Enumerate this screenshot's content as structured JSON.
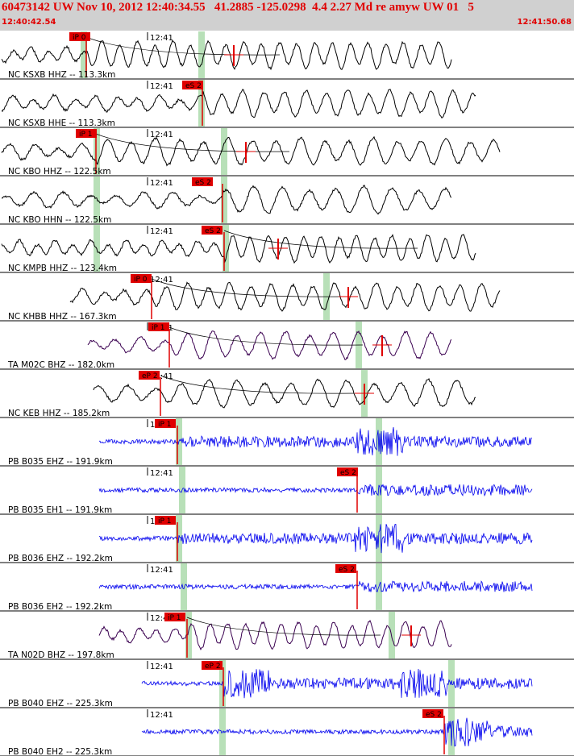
{
  "header": {
    "title": "60473142 UW Nov 10, 2012 12:40:34.55   41.2885 -125.0298  4.4 2.27 Md re amyw UW 01   5",
    "start_time": "12:40:42.54",
    "end_time": "12:41:50.68"
  },
  "colors": {
    "header_bg": "#d0d0d0",
    "header_text": "#e00000",
    "pick_box": "#e00000",
    "pick_text": "#000000",
    "window_bar": "#b8e0b8",
    "trace_black": "#000000",
    "trace_blue": "#0000ee",
    "trace_purple": "#3a0050"
  },
  "minute_label": "12:41",
  "traces": [
    {
      "label": "NC KSXB HHZ -- 113.3km",
      "pick": "iP 0",
      "color": "black",
      "start": 0.0
    },
    {
      "label": "NC KSXB HHE -- 113.3km",
      "pick": "eS 2",
      "color": "black",
      "start": 0.0
    },
    {
      "label": "NC KBO HHZ -- 122.5km",
      "pick": "iP 1",
      "color": "black",
      "start": 0.0
    },
    {
      "label": "NC KBO HHN -- 122.5km",
      "pick": "eS 2",
      "color": "black",
      "start": 0.0
    },
    {
      "label": "NC KMPB HHZ -- 123.4km",
      "pick": "eS 2",
      "color": "black",
      "start": 0.0
    },
    {
      "label": "NC KHBB HHZ -- 167.3km",
      "pick": "iP 0",
      "color": "black",
      "start": 0.12
    },
    {
      "label": "TA M02C BHZ -- 182.0km",
      "pick": "iP 1",
      "color": "purple",
      "start": 0.15
    },
    {
      "label": "NC KEB HHZ -- 185.2km",
      "pick": "eP 2",
      "color": "black",
      "start": 0.16
    },
    {
      "label": "PB B035 EHZ -- 191.9km",
      "pick": "iP 1",
      "color": "blue",
      "start": 0.17
    },
    {
      "label": "PB B035 EH1 -- 191.9km",
      "pick": "eS 2",
      "color": "blue",
      "start": 0.17
    },
    {
      "label": "PB B036 EHZ -- 192.2km",
      "pick": "iP 1",
      "color": "blue",
      "start": 0.17
    },
    {
      "label": "PB B036 EH2 -- 192.2km",
      "pick": "eS 2",
      "color": "blue",
      "start": 0.17
    },
    {
      "label": "TA N02D BHZ -- 197.8km",
      "pick": "iP 1",
      "color": "purple",
      "start": 0.17
    },
    {
      "label": "PB B040 EHZ -- 225.3km",
      "pick": "eP 2",
      "color": "blue",
      "start": 0.245
    },
    {
      "label": "PB B040 EH2 -- 225.3km",
      "pick": "eS 2",
      "color": "blue",
      "start": 0.245
    }
  ]
}
